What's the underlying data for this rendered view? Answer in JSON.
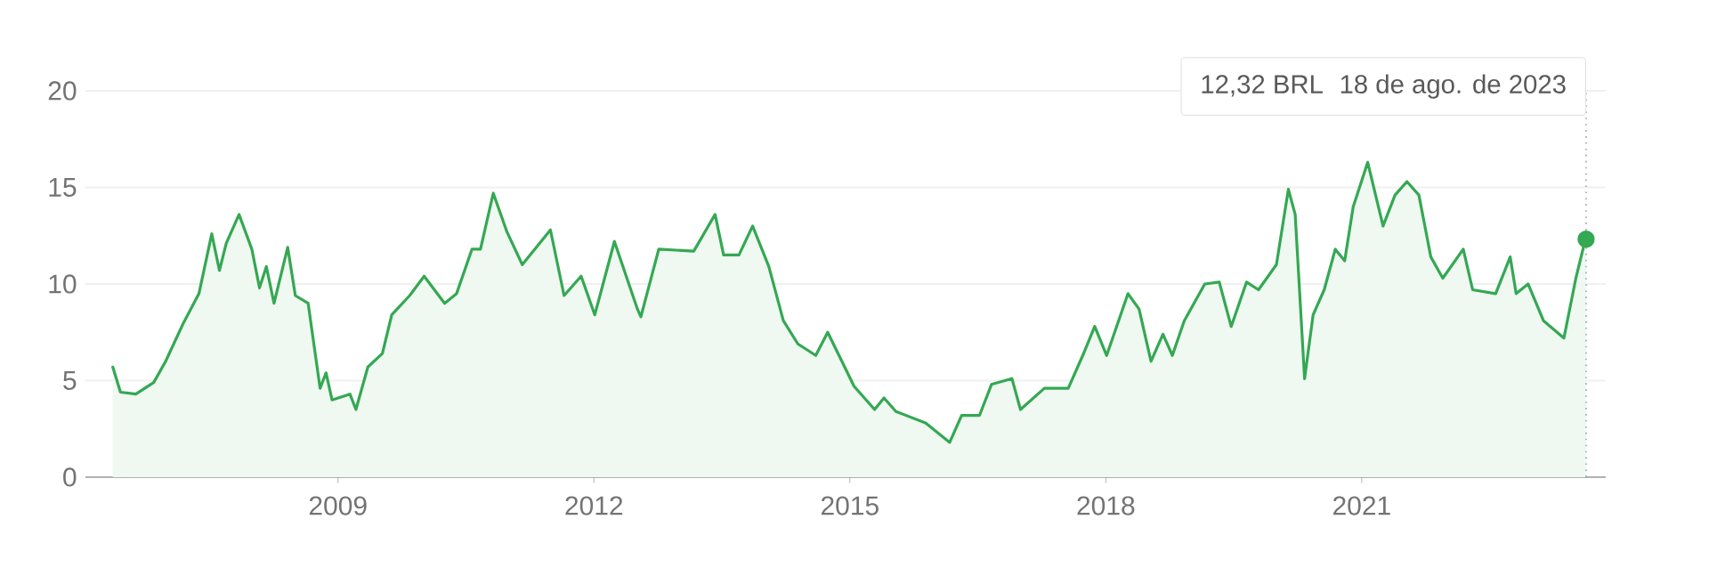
{
  "chart_data": {
    "type": "area",
    "color": "#34a853",
    "x": [
      2006.36,
      2006.45,
      2006.63,
      2006.84,
      2006.98,
      2007.19,
      2007.37,
      2007.52,
      2007.61,
      2007.69,
      2007.84,
      2007.99,
      2008.08,
      2008.16,
      2008.25,
      2008.41,
      2008.5,
      2008.65,
      2008.79,
      2008.86,
      2008.93,
      2009.14,
      2009.21,
      2009.35,
      2009.52,
      2009.63,
      2009.84,
      2010.01,
      2010.25,
      2010.39,
      2010.57,
      2010.67,
      2010.82,
      2010.98,
      2011.16,
      2011.49,
      2011.65,
      2011.85,
      2012.01,
      2012.24,
      2012.51,
      2012.55,
      2012.76,
      2013.17,
      2013.42,
      2013.52,
      2013.7,
      2013.86,
      2014.05,
      2014.22,
      2014.39,
      2014.6,
      2014.74,
      2015.05,
      2015.29,
      2015.4,
      2015.54,
      2015.89,
      2016.17,
      2016.31,
      2016.52,
      2016.66,
      2016.9,
      2017.0,
      2017.28,
      2017.56,
      2017.73,
      2017.87,
      2018.01,
      2018.26,
      2018.39,
      2018.53,
      2018.67,
      2018.78,
      2018.92,
      2019.16,
      2019.33,
      2019.47,
      2019.65,
      2019.79,
      2020.0,
      2020.14,
      2020.22,
      2020.33,
      2020.43,
      2020.56,
      2020.69,
      2020.8,
      2020.9,
      2021.07,
      2021.25,
      2021.39,
      2021.53,
      2021.67,
      2021.81,
      2021.95,
      2022.19,
      2022.3,
      2022.57,
      2022.74,
      2022.81,
      2022.95,
      2023.13,
      2023.37,
      2023.51,
      2023.61,
      2023.63
    ],
    "values": [
      5.7,
      4.4,
      4.3,
      4.9,
      6.0,
      8.0,
      9.5,
      12.6,
      10.7,
      12.1,
      13.6,
      11.8,
      9.8,
      10.9,
      9.0,
      11.9,
      9.4,
      9.0,
      4.6,
      5.4,
      4.0,
      4.3,
      3.5,
      5.7,
      6.4,
      8.4,
      9.4,
      10.4,
      9.0,
      9.5,
      11.8,
      11.8,
      14.7,
      12.7,
      11.0,
      12.8,
      9.4,
      10.4,
      8.4,
      12.2,
      8.7,
      8.3,
      11.8,
      11.7,
      13.6,
      11.5,
      11.5,
      13.0,
      10.9,
      8.1,
      6.9,
      6.3,
      7.5,
      4.7,
      3.5,
      4.1,
      3.4,
      2.8,
      1.8,
      3.2,
      3.2,
      4.8,
      5.1,
      3.5,
      4.6,
      4.6,
      6.3,
      7.8,
      6.3,
      9.5,
      8.7,
      6.0,
      7.4,
      6.3,
      8.1,
      10.0,
      10.1,
      7.8,
      10.1,
      9.7,
      11.0,
      14.9,
      13.6,
      5.1,
      8.4,
      9.7,
      11.8,
      11.2,
      14.0,
      16.3,
      13.0,
      14.6,
      15.3,
      14.6,
      11.4,
      10.3,
      11.8,
      9.7,
      9.5,
      11.4,
      9.5,
      10.0,
      8.1,
      7.2,
      10.3,
      12.1,
      12.32
    ],
    "xlim": [
      2006.04,
      2023.86
    ],
    "ylim": [
      0,
      20
    ],
    "xticks": [
      2009,
      2012,
      2015,
      2018,
      2021
    ],
    "yticks": [
      0,
      5,
      10,
      15,
      20
    ],
    "grid": "y",
    "ref_lines": [
      {
        "axis": "x",
        "value": 2023.63,
        "color": "#9e9e9e",
        "line_style": "dotted"
      }
    ],
    "annotations": [
      "12,32 BRL",
      "18 de ago. de 2023"
    ]
  }
}
